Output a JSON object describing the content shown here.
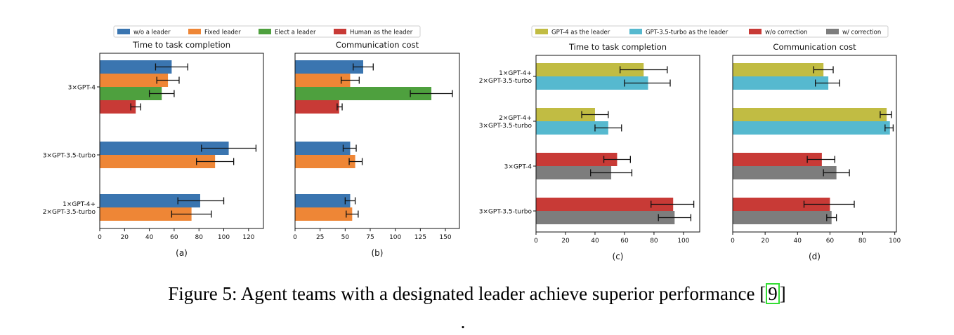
{
  "colors": {
    "wo_leader": "#3a75b0",
    "fixed_leader": "#ee8636",
    "elect_leader": "#4ea03e",
    "human_leader": "#c83a36",
    "gpt4_leader": "#c1bc43",
    "gpt35_leader": "#56b9cf",
    "wo_correction": "#c83a36",
    "w_correction": "#7d7d7d"
  },
  "legend_left": {
    "items": [
      {
        "label": "w/o a leader",
        "color": "#3a75b0"
      },
      {
        "label": "Fixed leader",
        "color": "#ee8636"
      },
      {
        "label": "Elect a leader",
        "color": "#4ea03e"
      },
      {
        "label": "Human as the leader",
        "color": "#c83a36"
      }
    ]
  },
  "legend_right": {
    "items": [
      {
        "label": "GPT-4 as the leader",
        "color": "#c1bc43"
      },
      {
        "label": "GPT-3.5-turbo as the leader",
        "color": "#56b9cf"
      },
      {
        "label": "w/o correction",
        "color": "#c83a36"
      },
      {
        "label": "w/ correction",
        "color": "#7d7d7d"
      }
    ]
  },
  "chart_data": [
    {
      "id": "a",
      "type": "bar",
      "orientation": "horizontal",
      "title": "Time to task completion",
      "sublabel": "(a)",
      "xlim": [
        0,
        132
      ],
      "ticks": [
        0,
        20,
        40,
        60,
        80,
        100,
        120
      ],
      "categories": [
        {
          "label": [
            "3×GPT-4"
          ],
          "bars": [
            {
              "series": "w/o a leader",
              "color": "#3a75b0",
              "value": 58,
              "err": [
                45,
                71
              ]
            },
            {
              "series": "Fixed leader",
              "color": "#ee8636",
              "value": 55,
              "err": [
                46,
                64
              ]
            },
            {
              "series": "Elect a leader",
              "color": "#4ea03e",
              "value": 50,
              "err": [
                40,
                60
              ]
            },
            {
              "series": "Human as the leader",
              "color": "#c83a36",
              "value": 29,
              "err": [
                25,
                33
              ]
            }
          ]
        },
        {
          "label": [
            "3×GPT-3.5-turbo"
          ],
          "bars": [
            {
              "series": "w/o a leader",
              "color": "#3a75b0",
              "value": 104,
              "err": [
                82,
                126
              ]
            },
            {
              "series": "Fixed leader",
              "color": "#ee8636",
              "value": 93,
              "err": [
                78,
                108
              ]
            }
          ]
        },
        {
          "label": [
            "1×GPT-4+",
            "2×GPT-3.5-turbo"
          ],
          "bars": [
            {
              "series": "w/o a leader",
              "color": "#3a75b0",
              "value": 81,
              "err": [
                63,
                100
              ]
            },
            {
              "series": "Fixed leader",
              "color": "#ee8636",
              "value": 74,
              "err": [
                58,
                90
              ]
            }
          ]
        }
      ]
    },
    {
      "id": "b",
      "type": "bar",
      "orientation": "horizontal",
      "title": "Communication cost",
      "sublabel": "(b)",
      "xlim": [
        0,
        164
      ],
      "ticks": [
        0,
        25,
        50,
        75,
        100,
        125,
        150
      ],
      "categories": [
        {
          "label": [],
          "bars": [
            {
              "series": "w/o a leader",
              "color": "#3a75b0",
              "value": 68,
              "err": [
                58,
                78
              ]
            },
            {
              "series": "Fixed leader",
              "color": "#ee8636",
              "value": 55,
              "err": [
                46,
                64
              ]
            },
            {
              "series": "Elect a leader",
              "color": "#4ea03e",
              "value": 136,
              "err": [
                115,
                157
              ]
            },
            {
              "series": "Human as the leader",
              "color": "#c83a36",
              "value": 44,
              "err": [
                42,
                47
              ]
            }
          ]
        },
        {
          "label": [],
          "bars": [
            {
              "series": "w/o a leader",
              "color": "#3a75b0",
              "value": 55,
              "err": [
                48,
                61
              ]
            },
            {
              "series": "Fixed leader",
              "color": "#ee8636",
              "value": 60,
              "err": [
                54,
                67
              ]
            }
          ]
        },
        {
          "label": [],
          "bars": [
            {
              "series": "w/o a leader",
              "color": "#3a75b0",
              "value": 55,
              "err": [
                50,
                60
              ]
            },
            {
              "series": "Fixed leader",
              "color": "#ee8636",
              "value": 57,
              "err": [
                51,
                63
              ]
            }
          ]
        }
      ]
    },
    {
      "id": "c",
      "type": "bar",
      "orientation": "horizontal",
      "title": "Time to task completion",
      "sublabel": "(c)",
      "xlim": [
        0,
        111
      ],
      "ticks": [
        0,
        20,
        40,
        60,
        80,
        100
      ],
      "categories": [
        {
          "label": [
            "1×GPT-4+",
            "2×GPT-3.5-turbo"
          ],
          "bars": [
            {
              "series": "GPT-4 as the leader",
              "color": "#c1bc43",
              "value": 73,
              "err": [
                57,
                89
              ]
            },
            {
              "series": "GPT-3.5-turbo as the leader",
              "color": "#56b9cf",
              "value": 76,
              "err": [
                60,
                91
              ]
            }
          ]
        },
        {
          "label": [
            "2×GPT-4+",
            "3×GPT-3.5-turbo"
          ],
          "bars": [
            {
              "series": "GPT-4 as the leader",
              "color": "#c1bc43",
              "value": 40,
              "err": [
                31,
                49
              ]
            },
            {
              "series": "GPT-3.5-turbo as the leader",
              "color": "#56b9cf",
              "value": 49,
              "err": [
                40,
                58
              ]
            }
          ]
        },
        {
          "label": [
            "3×GPT-4"
          ],
          "bars": [
            {
              "series": "w/o correction",
              "color": "#c83a36",
              "value": 55,
              "err": [
                46,
                64
              ]
            },
            {
              "series": "w/ correction",
              "color": "#7d7d7d",
              "value": 51,
              "err": [
                37,
                65
              ]
            }
          ]
        },
        {
          "label": [
            "3×GPT-3.5-turbo"
          ],
          "bars": [
            {
              "series": "w/o correction",
              "color": "#c83a36",
              "value": 93,
              "err": [
                78,
                107
              ]
            },
            {
              "series": "w/ correction",
              "color": "#7d7d7d",
              "value": 94,
              "err": [
                83,
                105
              ]
            }
          ]
        }
      ]
    },
    {
      "id": "d",
      "type": "bar",
      "orientation": "horizontal",
      "title": "Communication cost",
      "sublabel": "(d)",
      "xlim": [
        0,
        101
      ],
      "ticks": [
        0,
        20,
        40,
        60,
        80,
        100
      ],
      "categories": [
        {
          "label": [],
          "bars": [
            {
              "series": "GPT-4 as the leader",
              "color": "#c1bc43",
              "value": 56,
              "err": [
                50,
                62
              ]
            },
            {
              "series": "GPT-3.5-turbo as the leader",
              "color": "#56b9cf",
              "value": 59,
              "err": [
                51,
                66
              ]
            }
          ]
        },
        {
          "label": [],
          "bars": [
            {
              "series": "GPT-4 as the leader",
              "color": "#c1bc43",
              "value": 95,
              "err": [
                91,
                98
              ]
            },
            {
              "series": "GPT-3.5-turbo as the leader",
              "color": "#56b9cf",
              "value": 97,
              "err": [
                94,
                99
              ]
            }
          ]
        },
        {
          "label": [],
          "bars": [
            {
              "series": "w/o correction",
              "color": "#c83a36",
              "value": 55,
              "err": [
                46,
                63
              ]
            },
            {
              "series": "w/ correction",
              "color": "#7d7d7d",
              "value": 64,
              "err": [
                56,
                72
              ]
            }
          ]
        },
        {
          "label": [],
          "bars": [
            {
              "series": "w/o correction",
              "color": "#c83a36",
              "value": 60,
              "err": [
                44,
                75
              ]
            },
            {
              "series": "w/ correction",
              "color": "#7d7d7d",
              "value": 61,
              "err": [
                58,
                64
              ]
            }
          ]
        }
      ]
    }
  ],
  "caption": {
    "text": "Figure 5: Agent teams with a designated leader achieve superior performance [",
    "cite": "9",
    "close": "]",
    "trailing": "."
  }
}
